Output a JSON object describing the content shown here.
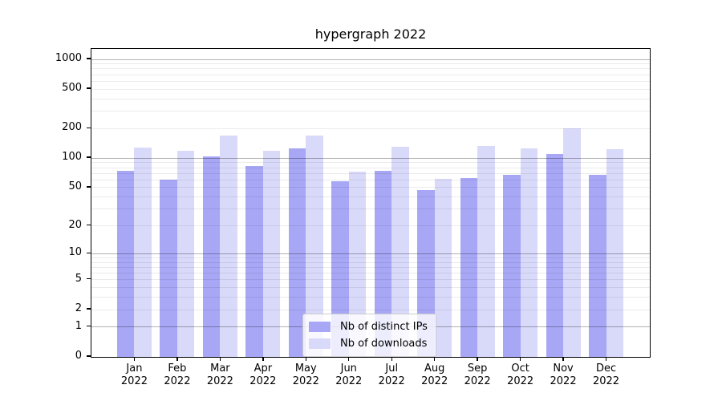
{
  "title": "hypergraph 2022",
  "colors": {
    "bar_distinct_ips": "#a7a7f6",
    "bar_downloads": "#d9d9fa",
    "grid_major": "rgba(0,0,0,0.30)",
    "grid_minor": "rgba(0,0,0,0.08)",
    "axis": "#000000",
    "legend_border": "#cccccc"
  },
  "legend": {
    "items": [
      {
        "label": "Nb of distinct IPs",
        "swatch_color": "#a7a7f6"
      },
      {
        "label": "Nb of downloads",
        "swatch_color": "#d9d9fa"
      }
    ]
  },
  "chart_data": {
    "type": "bar",
    "title": "hypergraph 2022",
    "categories": [
      "Jan 2022",
      "Feb 2022",
      "Mar 2022",
      "Apr 2022",
      "May 2022",
      "Jun 2022",
      "Jul 2022",
      "Aug 2022",
      "Sep 2022",
      "Oct 2022",
      "Nov 2022",
      "Dec 2022"
    ],
    "series": [
      {
        "name": "Nb of distinct IPs",
        "color": "#a7a7f6",
        "values": [
          74,
          60,
          105,
          83,
          126,
          58,
          74,
          47,
          63,
          67,
          110,
          68
        ]
      },
      {
        "name": "Nb of downloads",
        "color": "#d9d9fa",
        "values": [
          128,
          119,
          170,
          118,
          170,
          73,
          131,
          62,
          132,
          125,
          199,
          123
        ]
      }
    ],
    "xlabel": "",
    "ylabel": "",
    "yscale": "symlog (rendered as log10(1+v))",
    "ylim": [
      0,
      1300
    ],
    "y_ticks": [
      0,
      1,
      2,
      5,
      10,
      20,
      50,
      100,
      200,
      500,
      1000
    ],
    "grid": {
      "major": [
        1,
        10,
        100,
        1000
      ],
      "minor": [
        2,
        3,
        4,
        5,
        6,
        7,
        8,
        9,
        20,
        30,
        40,
        50,
        60,
        70,
        80,
        90,
        200,
        300,
        400,
        500,
        600,
        700,
        800,
        900
      ]
    },
    "legend_position": "lower center",
    "grid_on": true
  }
}
